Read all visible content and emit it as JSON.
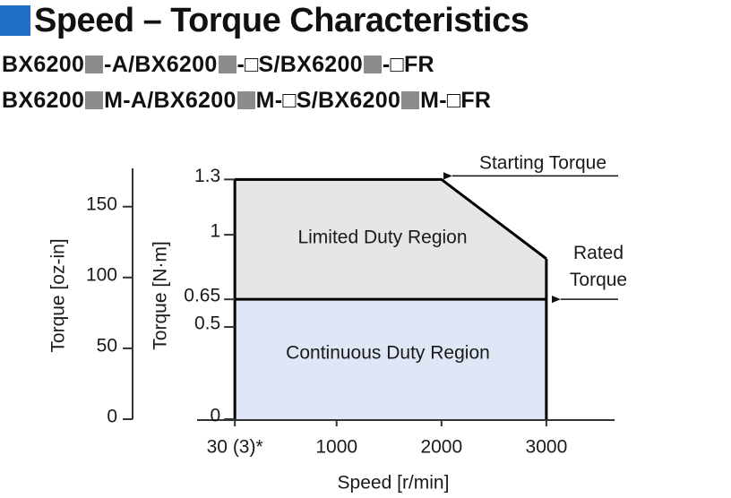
{
  "chart_data": {
    "type": "area",
    "title": "Speed – Torque Characteristics",
    "subtitle_lines": [
      [
        "BX6200",
        "-A/BX6200",
        "-□S/BX6200",
        "-□FR"
      ],
      [
        "BX6200",
        "M-A/BX6200",
        "M-□S/BX6200",
        "M-□FR"
      ]
    ],
    "x_label": "Speed [r/min]",
    "y_label": "Torque [N·m]",
    "y2_label": "Torque [oz-in]",
    "xlim": [
      -330,
      3650
    ],
    "xticks": [
      {
        "value": 30,
        "label": "30 (3)*"
      },
      1000,
      2000,
      3000
    ],
    "ylim": [
      0,
      1.36
    ],
    "yticks": [
      0,
      0.5,
      0.65,
      1,
      1.3
    ],
    "y2lim": [
      0,
      177
    ],
    "y2ticks": [
      0,
      50,
      100,
      150
    ],
    "edge_color": "#000000",
    "series": [
      {
        "name": "Limited Duty Region",
        "color": "#e6e6e6",
        "x": [
          30,
          2000,
          3000
        ],
        "values": [
          1.3,
          1.3,
          0.87
        ]
      },
      {
        "name": "Continuous Duty Region",
        "color": "#dfe6f5",
        "x": [
          30,
          3000
        ],
        "values": [
          0.65,
          0.65
        ]
      }
    ],
    "annotations": [
      "Starting Torque",
      "Rated Torque"
    ]
  }
}
